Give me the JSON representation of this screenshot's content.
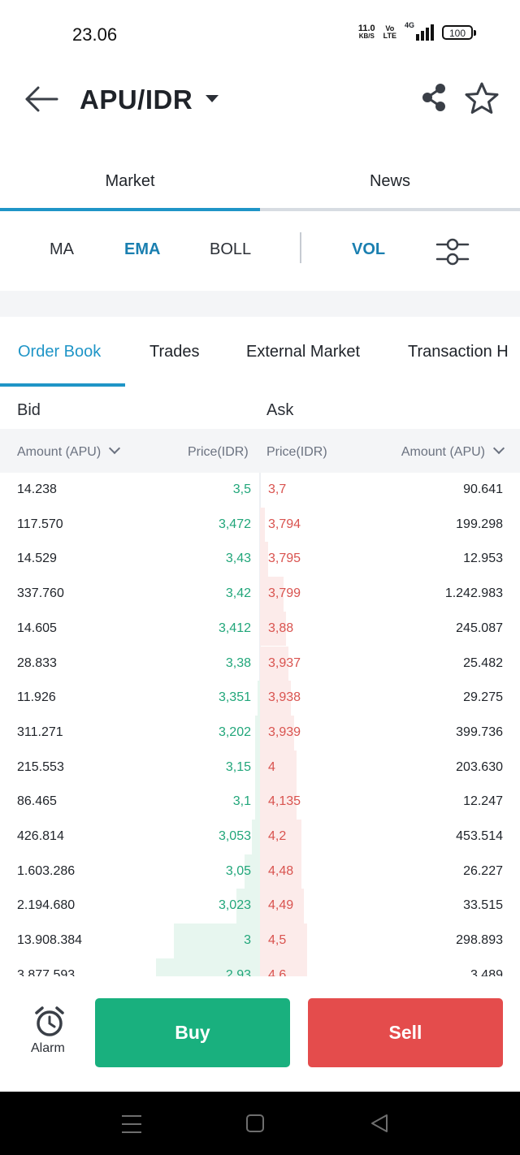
{
  "status_bar": {
    "time": "23.06",
    "net_speed_value": "11.0",
    "net_speed_unit": "KB/S",
    "volte_top": "Vo",
    "volte_bottom": "LTE",
    "network_type": "4G",
    "battery": "100"
  },
  "header": {
    "pair": "APU/IDR",
    "icons": [
      "back-arrow-icon",
      "caret-down-icon",
      "share-icon",
      "star-icon"
    ]
  },
  "main_tabs": [
    {
      "label": "Market",
      "active": true
    },
    {
      "label": "News",
      "active": false
    }
  ],
  "indicators": {
    "ma": "MA",
    "ema": "EMA",
    "boll": "BOLL",
    "vol": "VOL",
    "active": [
      "EMA",
      "VOL"
    ]
  },
  "book_tabs": [
    {
      "label": "Order Book",
      "active": true
    },
    {
      "label": "Trades",
      "active": false
    },
    {
      "label": "External Market",
      "active": false
    },
    {
      "label": "Transaction H",
      "active": false
    }
  ],
  "order_book": {
    "bid_label": "Bid",
    "ask_label": "Ask",
    "bid_amount_header": "Amount (APU)",
    "bid_price_header": "Price(IDR)",
    "ask_price_header": "Price(IDR)",
    "ask_amount_header": "Amount (APU)",
    "rows": [
      {
        "bid_amount": "14.238",
        "bid_price": "3,5",
        "ask_price": "3,7",
        "ask_amount": "90.641",
        "bid_depth": 0.0,
        "ask_depth": 0.0
      },
      {
        "bid_amount": "117.570",
        "bid_price": "3,472",
        "ask_price": "3,794",
        "ask_amount": "199.298",
        "bid_depth": 0.0,
        "ask_depth": 0.02
      },
      {
        "bid_amount": "14.529",
        "bid_price": "3,43",
        "ask_price": "3,795",
        "ask_amount": "12.953",
        "bid_depth": 0.0,
        "ask_depth": 0.03
      },
      {
        "bid_amount": "337.760",
        "bid_price": "3,42",
        "ask_price": "3,799",
        "ask_amount": "1.242.983",
        "bid_depth": 0.0,
        "ask_depth": 0.09
      },
      {
        "bid_amount": "14.605",
        "bid_price": "3,412",
        "ask_price": "3,88",
        "ask_amount": "245.087",
        "bid_depth": 0.0,
        "ask_depth": 0.1
      },
      {
        "bid_amount": "28.833",
        "bid_price": "3,38",
        "ask_price": "3,937",
        "ask_amount": "25.482",
        "bid_depth": 0.0,
        "ask_depth": 0.11
      },
      {
        "bid_amount": "11.926",
        "bid_price": "3,351",
        "ask_price": "3,938",
        "ask_amount": "29.275",
        "bid_depth": 0.01,
        "ask_depth": 0.12
      },
      {
        "bid_amount": "311.271",
        "bid_price": "3,202",
        "ask_price": "3,939",
        "ask_amount": "399.736",
        "bid_depth": 0.02,
        "ask_depth": 0.13
      },
      {
        "bid_amount": "215.553",
        "bid_price": "3,15",
        "ask_price": "4",
        "ask_amount": "203.630",
        "bid_depth": 0.02,
        "ask_depth": 0.14
      },
      {
        "bid_amount": "86.465",
        "bid_price": "3,1",
        "ask_price": "4,135",
        "ask_amount": "12.247",
        "bid_depth": 0.02,
        "ask_depth": 0.14
      },
      {
        "bid_amount": "426.814",
        "bid_price": "3,053",
        "ask_price": "4,2",
        "ask_amount": "453.514",
        "bid_depth": 0.03,
        "ask_depth": 0.16
      },
      {
        "bid_amount": "1.603.286",
        "bid_price": "3,05",
        "ask_price": "4,48",
        "ask_amount": "26.227",
        "bid_depth": 0.06,
        "ask_depth": 0.16
      },
      {
        "bid_amount": "2.194.680",
        "bid_price": "3,023",
        "ask_price": "4,49",
        "ask_amount": "33.515",
        "bid_depth": 0.09,
        "ask_depth": 0.17
      },
      {
        "bid_amount": "13.908.384",
        "bid_price": "3",
        "ask_price": "4,5",
        "ask_amount": "298.893",
        "bid_depth": 0.33,
        "ask_depth": 0.18
      },
      {
        "bid_amount": "3.877.593",
        "bid_price": "2,93",
        "ask_price": "4,6",
        "ask_amount": "3.489",
        "bid_depth": 0.4,
        "ask_depth": 0.18
      }
    ]
  },
  "bottom": {
    "alarm_label": "Alarm",
    "buy_label": "Buy",
    "sell_label": "Sell"
  },
  "colors": {
    "accent": "#1f95c7",
    "buy": "#19b07e",
    "sell": "#e44c4c",
    "bid_text": "#21a67a",
    "ask_text": "#d9534f"
  }
}
